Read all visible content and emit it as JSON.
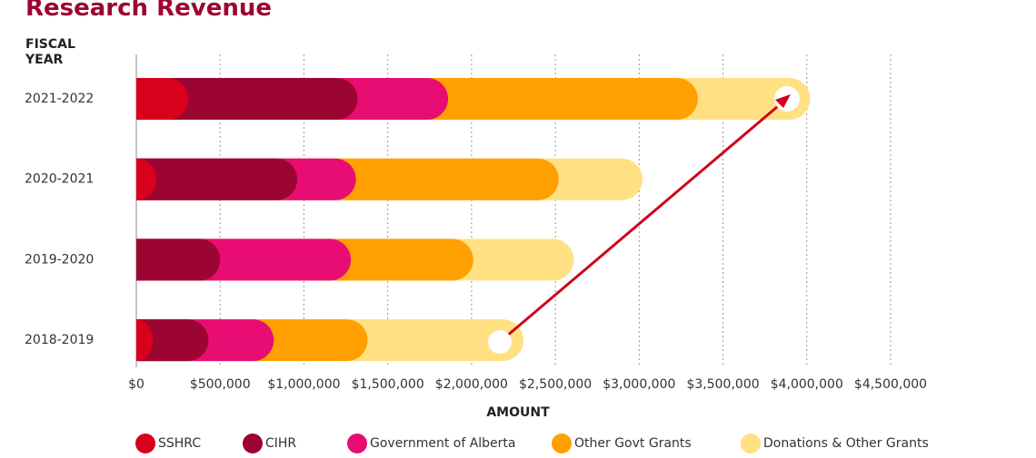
{
  "chart_data": {
    "type": "stacked-bar-horizontal",
    "title": "Research Revenue",
    "y_label": "FISCAL YEAR",
    "x_label": "AMOUNT",
    "categories": [
      "2021-2022",
      "2020-2021",
      "2019-2020",
      "2018-2019"
    ],
    "series": [
      {
        "name": "SSHRC",
        "color": "#d9001b",
        "values": [
          310000,
          120000,
          0,
          100000
        ]
      },
      {
        "name": "CIHR",
        "color": "#9c0531",
        "values": [
          1010000,
          840000,
          500000,
          330000
        ]
      },
      {
        "name": "Government of Alberta",
        "color": "#e80d72",
        "values": [
          540000,
          350000,
          780000,
          390000
        ]
      },
      {
        "name": "Other Govt Grants",
        "color": "#ffa000",
        "values": [
          1490000,
          1210000,
          730000,
          560000
        ]
      },
      {
        "name": "Donations & Other Grants",
        "color": "#ffe083",
        "values": [
          670000,
          500000,
          600000,
          930000
        ]
      }
    ],
    "xlim": [
      0,
      4500000
    ],
    "xticks": [
      {
        "value": 0,
        "label": "$0"
      },
      {
        "value": 500000,
        "label": "$500,000"
      },
      {
        "value": 1000000,
        "label": "$1,000,000"
      },
      {
        "value": 1500000,
        "label": "$1,500,000"
      },
      {
        "value": 2000000,
        "label": "$2,000,000"
      },
      {
        "value": 2500000,
        "label": "$2,500,000"
      },
      {
        "value": 3000000,
        "label": "$3,000,000"
      },
      {
        "value": 3500000,
        "label": "$3,500,000"
      },
      {
        "value": 4000000,
        "label": "$4,000,000"
      },
      {
        "value": 4500000,
        "label": "$4,500,000"
      }
    ],
    "grid": true
  }
}
